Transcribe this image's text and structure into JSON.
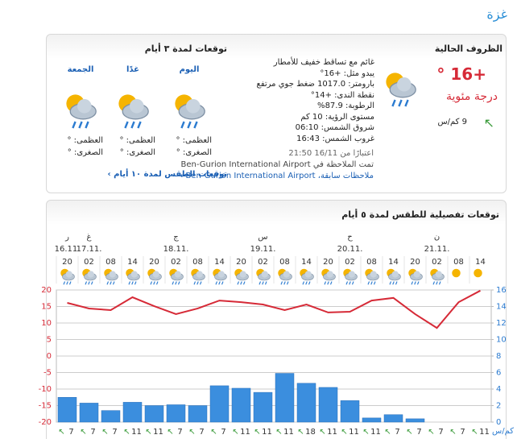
{
  "city": "غزة",
  "current": {
    "title": "الظروف الحالية",
    "temp": "+16 °",
    "unit": "درجة مئوية",
    "wind": "9 كم/س",
    "details": [
      "غائم مع تساقط خفيف للأمطار",
      "يبدو مثل: +16°",
      "بارومتر: 1017.0 ضغط جوي مرتفع",
      "نقطة الندى: +14°",
      "الرطوبة: 87.9%",
      "مستوى الرؤية: 10 كم",
      "شروق الشمس: 06:10",
      "غروب الشمس: 16:43"
    ],
    "as_of": "اعتبارًا من 16/11 21:50",
    "observed": "تمت الملاحظة في Ben-Gurion International Airport",
    "previous": "ملاحظات سابقة، Ben-Gurion International Airport ›"
  },
  "forecast3": {
    "title": "توقعات لمدة ٣ أيام",
    "days": [
      {
        "name": "اليوم",
        "max": "العظمى: °",
        "min": "الصغرى: °"
      },
      {
        "name": "غدًا",
        "max": "العظمى: °",
        "min": "الصغرى: °"
      },
      {
        "name": "الجمعة",
        "max": "العظمى: °",
        "min": "الصغرى: °"
      }
    ],
    "link": "توقعات الطقس لمدة ١٠ أيام ›"
  },
  "detailed": {
    "title": "توقعات تفصيلية للطقس لمدة ٥ أيام",
    "wind_unit": "كم/س"
  },
  "chart_data": {
    "type": "bar",
    "categories": [
      "20",
      "02",
      "08",
      "14",
      "20",
      "02",
      "08",
      "14",
      "20",
      "02",
      "08",
      "14",
      "20",
      "02",
      "08",
      "14",
      "20",
      "02",
      "08",
      "14"
    ],
    "dates": [
      "16.11.",
      "17.11.",
      null,
      null,
      null,
      "18.11.",
      null,
      null,
      null,
      "19.11.",
      null,
      null,
      null,
      "20.11.",
      null,
      null,
      null,
      "21.11.",
      null,
      null
    ],
    "days": [
      "ر",
      "غ",
      null,
      null,
      null,
      "ج",
      null,
      null,
      null,
      "س",
      null,
      null,
      null,
      "ح",
      null,
      null,
      null,
      "ن",
      null,
      null
    ],
    "wind": [
      7,
      7,
      7,
      11,
      11,
      7,
      7,
      7,
      11,
      11,
      11,
      18,
      11,
      11,
      11,
      7,
      7,
      7,
      7,
      11
    ],
    "series": [
      {
        "name": "precipitation",
        "type": "bar",
        "axis": "y2",
        "color": "#3b8ede",
        "values": [
          3.0,
          2.3,
          1.4,
          2.4,
          2.0,
          2.1,
          2.0,
          4.4,
          4.1,
          3.6,
          5.9,
          4.7,
          4.2,
          2.6,
          0.5,
          0.9,
          0.4,
          0,
          0,
          0
        ]
      },
      {
        "name": "temperature",
        "type": "line",
        "color": "#d62a37",
        "values": [
          16.1,
          14.4,
          13.9,
          17.8,
          15.1,
          12.7,
          14.4,
          16.8,
          16.3,
          15.6,
          13.9,
          15.6,
          13.2,
          13.4,
          16.8,
          17.6,
          12.7,
          8.5,
          16.3,
          19.8
        ]
      }
    ],
    "ylim": [
      -20,
      20
    ],
    "yticks": [
      -20,
      -15,
      -10,
      -5,
      0,
      5,
      10,
      15,
      20
    ],
    "y_color": "#d62a37",
    "y2lim": [
      0,
      16
    ],
    "y2ticks": [
      0,
      2,
      4,
      6,
      8,
      10,
      12,
      14,
      16
    ],
    "y2_color": "#2b7bd0",
    "grid": true
  }
}
